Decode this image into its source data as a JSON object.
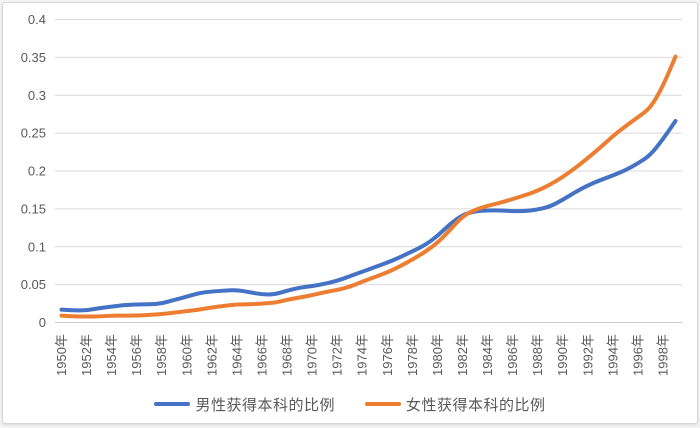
{
  "chart_data": {
    "type": "line",
    "title": "",
    "xlabel": "",
    "ylabel": "",
    "ylim": [
      0,
      0.4
    ],
    "grid": "horizontal",
    "legend_position": "bottom",
    "x": [
      1950,
      1951,
      1952,
      1953,
      1954,
      1955,
      1956,
      1957,
      1958,
      1959,
      1960,
      1961,
      1962,
      1963,
      1964,
      1965,
      1966,
      1967,
      1968,
      1969,
      1970,
      1971,
      1972,
      1973,
      1974,
      1975,
      1976,
      1977,
      1978,
      1979,
      1980,
      1981,
      1982,
      1983,
      1984,
      1985,
      1986,
      1987,
      1988,
      1989,
      1990,
      1991,
      1992,
      1993,
      1994,
      1995,
      1996,
      1997,
      1998,
      1999
    ],
    "x_tick_labels": [
      "1950年",
      "1952年",
      "1954年",
      "1956年",
      "1958年",
      "1960年",
      "1962年",
      "1964年",
      "1966年",
      "1968年",
      "1970年",
      "1972年",
      "1974年",
      "1976年",
      "1978年",
      "1980年",
      "1982年",
      "1984年",
      "1986年",
      "1988年",
      "1990年",
      "1992年",
      "1994年",
      "1996年",
      "1998年"
    ],
    "y_tick_labels": [
      "0",
      "0.05",
      "0.1",
      "0.15",
      "0.2",
      "0.25",
      "0.3",
      "0.35",
      "0.4"
    ],
    "series": [
      {
        "name": "男性获得本科的比例",
        "color": "#4472C4",
        "values": [
          0.017,
          0.016,
          0.016,
          0.019,
          0.021,
          0.023,
          0.024,
          0.024,
          0.025,
          0.03,
          0.034,
          0.039,
          0.041,
          0.042,
          0.043,
          0.04,
          0.037,
          0.037,
          0.042,
          0.046,
          0.048,
          0.051,
          0.055,
          0.061,
          0.067,
          0.073,
          0.079,
          0.086,
          0.094,
          0.102,
          0.114,
          0.13,
          0.142,
          0.147,
          0.148,
          0.148,
          0.147,
          0.147,
          0.149,
          0.153,
          0.162,
          0.172,
          0.181,
          0.188,
          0.194,
          0.201,
          0.21,
          0.221,
          0.242,
          0.266
        ]
      },
      {
        "name": "女性获得本科的比例",
        "color": "#ED7D31",
        "values": [
          0.009,
          0.008,
          0.008,
          0.008,
          0.009,
          0.009,
          0.009,
          0.01,
          0.011,
          0.013,
          0.015,
          0.017,
          0.02,
          0.022,
          0.024,
          0.024,
          0.025,
          0.026,
          0.03,
          0.033,
          0.036,
          0.04,
          0.043,
          0.047,
          0.054,
          0.06,
          0.066,
          0.074,
          0.083,
          0.093,
          0.105,
          0.122,
          0.14,
          0.149,
          0.154,
          0.158,
          0.163,
          0.168,
          0.174,
          0.182,
          0.192,
          0.204,
          0.217,
          0.231,
          0.246,
          0.259,
          0.271,
          0.283,
          0.312,
          0.351
        ]
      }
    ]
  },
  "colors": {
    "male_line": "#4472C4",
    "female_line": "#ED7D31",
    "gridline": "#D9D9D9",
    "axis_line": "#C9C9C9",
    "tick_text": "#595959"
  }
}
